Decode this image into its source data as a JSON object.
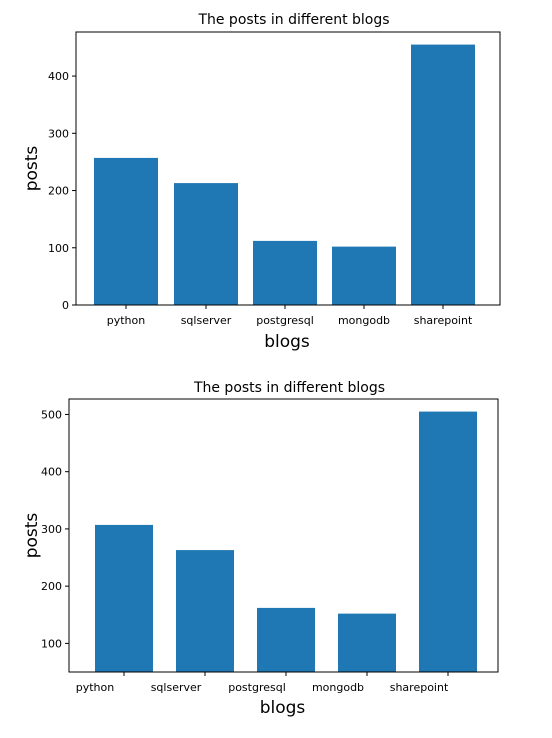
{
  "chart_data": [
    {
      "type": "bar",
      "title": "The posts in different blogs",
      "xlabel": "blogs",
      "ylabel": "posts",
      "categories": [
        "python",
        "sqlserver",
        "postgresql",
        "mongodb",
        "sharepoint"
      ],
      "values": [
        257,
        213,
        112,
        102,
        455
      ],
      "ylim": [
        0,
        477
      ],
      "yticks": [
        0,
        100,
        200,
        300,
        400
      ],
      "color": "#1f77b4",
      "grid": false
    },
    {
      "type": "bar",
      "title": "The posts in different blogs",
      "xlabel": "blogs",
      "ylabel": "posts",
      "categories": [
        "python",
        "sqlserver",
        "postgresql",
        "mongodb",
        "sharepoint"
      ],
      "values": [
        307,
        263,
        162,
        152,
        505
      ],
      "ylim": [
        50,
        527
      ],
      "yticks": [
        100,
        200,
        300,
        400,
        500
      ],
      "color": "#1f77b4",
      "grid": false
    }
  ]
}
